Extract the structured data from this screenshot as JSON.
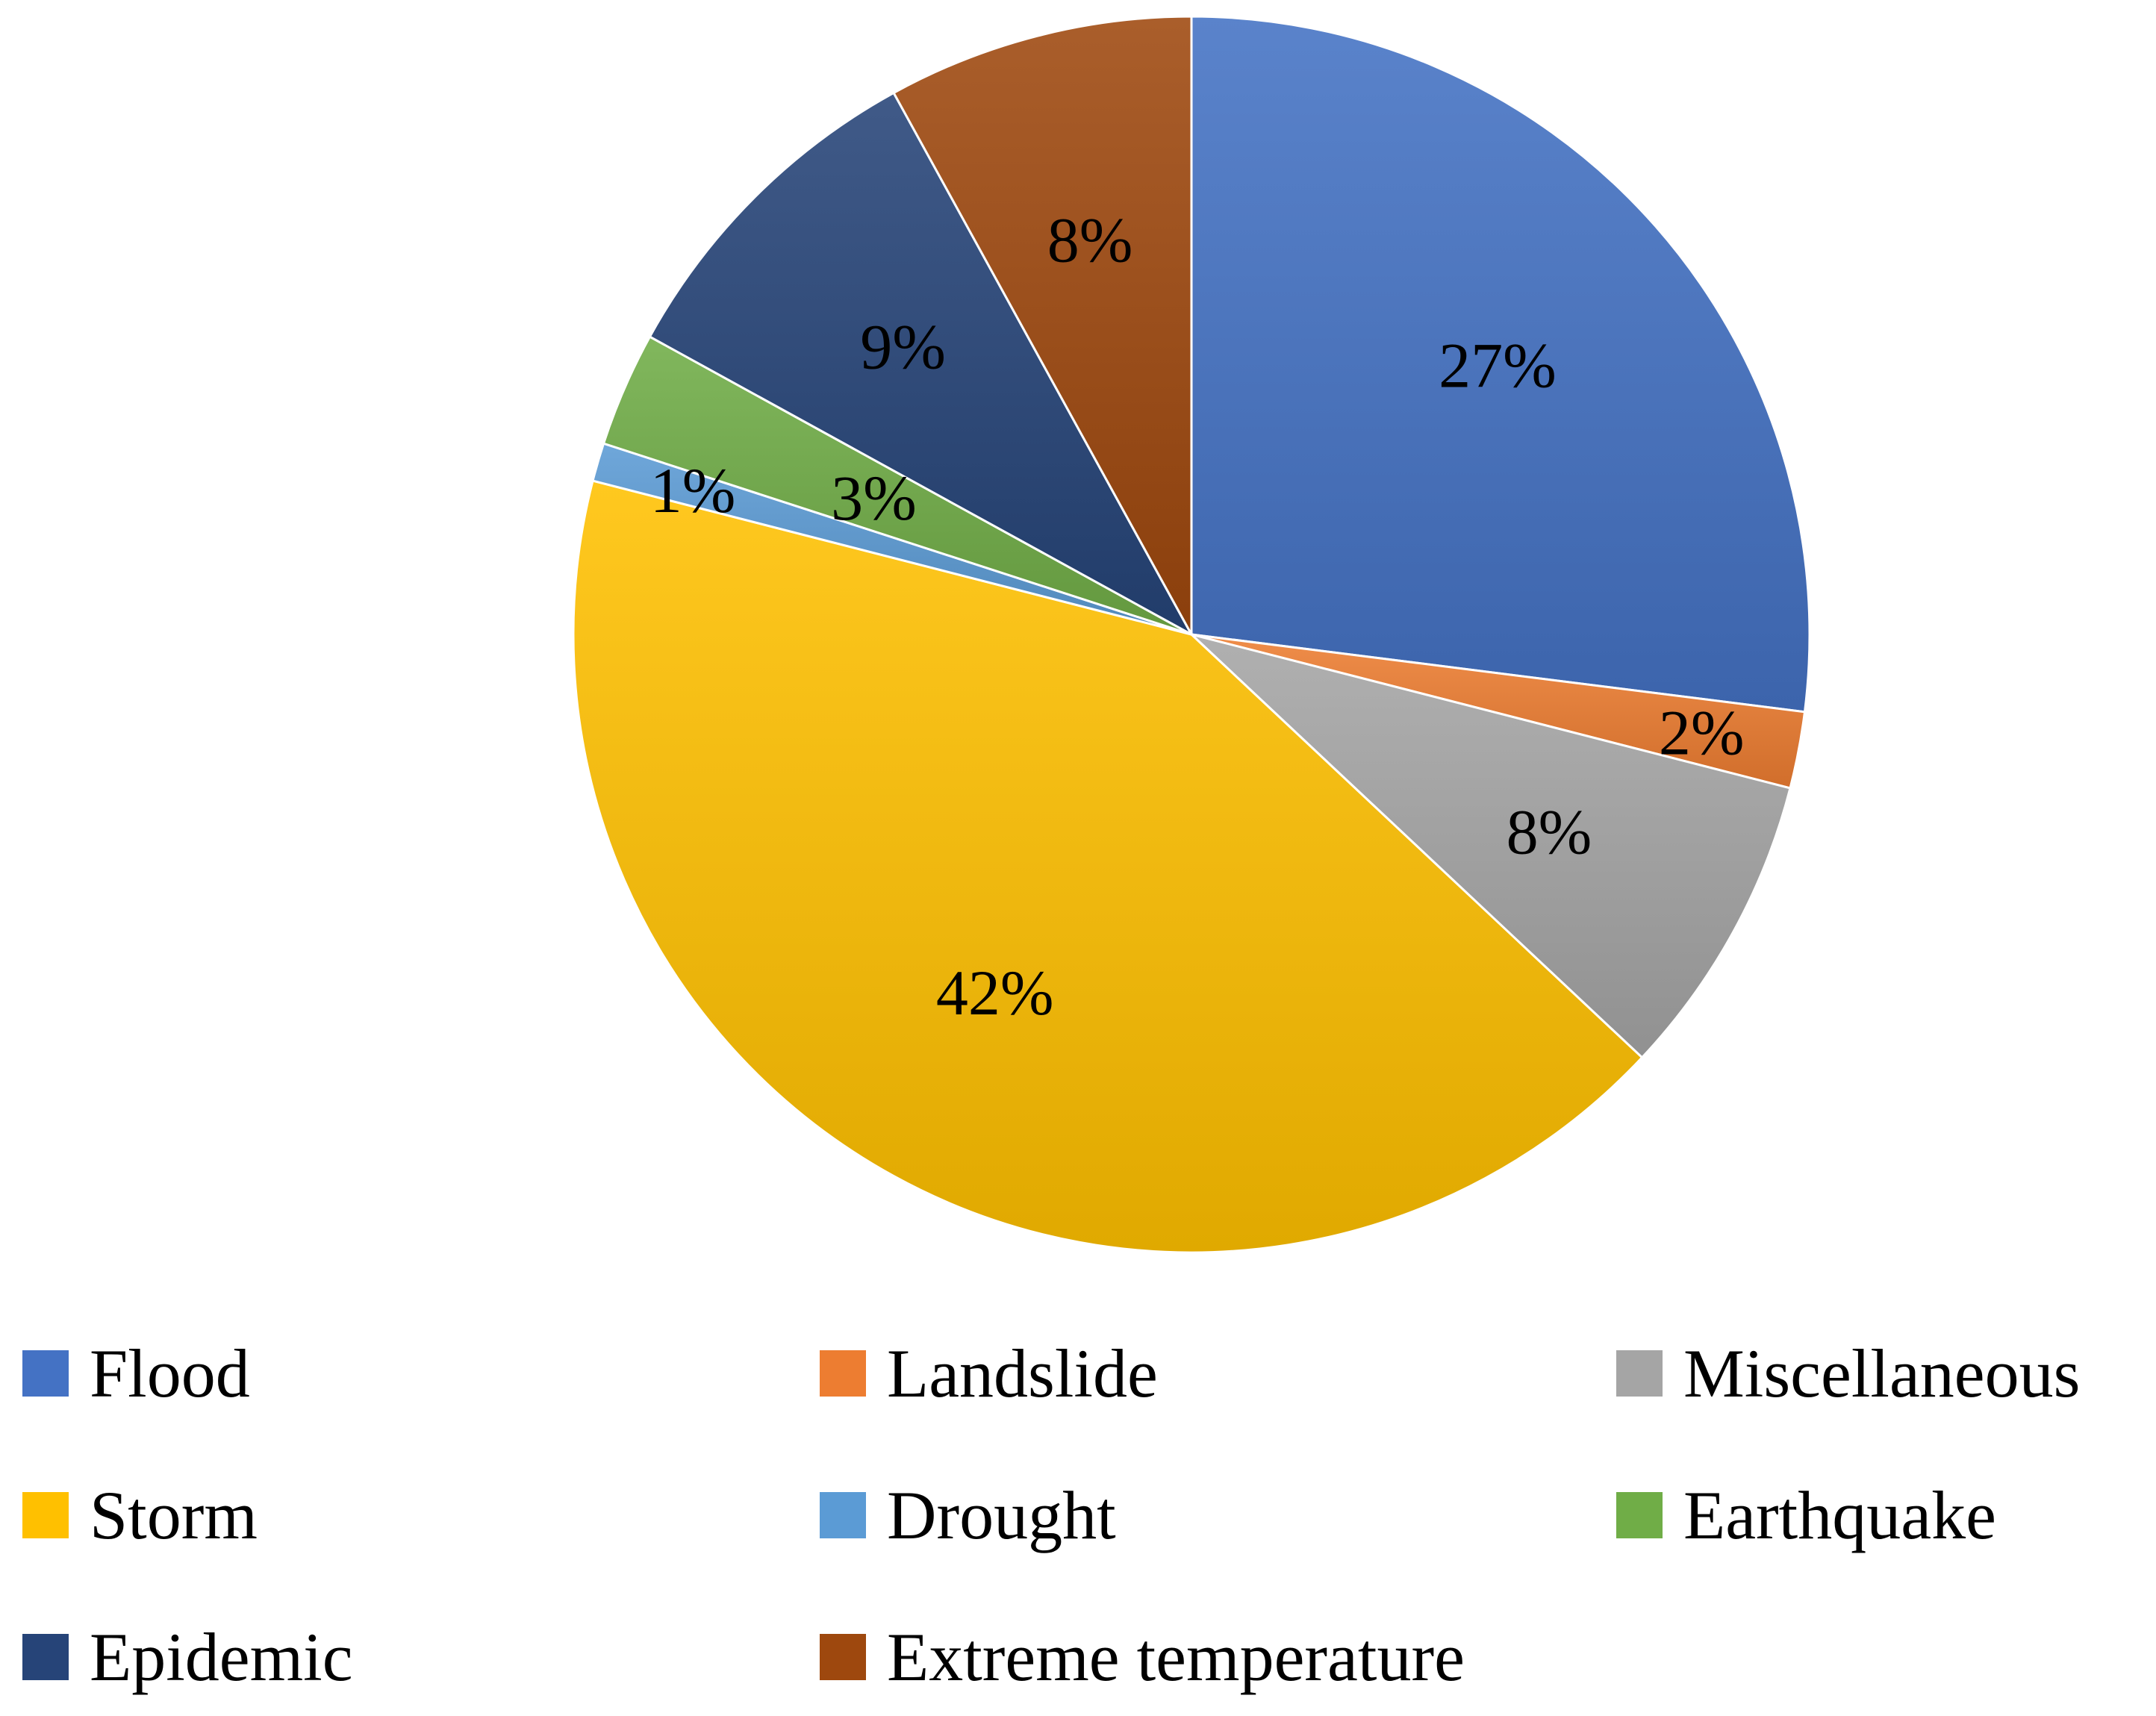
{
  "chart_data": {
    "type": "pie",
    "title": "",
    "start_angle_deg": 0,
    "direction": "clockwise",
    "slices": [
      {
        "name": "Flood",
        "value": 27,
        "label": "27%",
        "color": "#4472C4"
      },
      {
        "name": "Landslide",
        "value": 2,
        "label": "2%",
        "color": "#ED7D31"
      },
      {
        "name": "Miscellaneous",
        "value": 8,
        "label": "8%",
        "color": "#A5A5A5"
      },
      {
        "name": "Storm",
        "value": 42,
        "label": "42%",
        "color": "#FFC000"
      },
      {
        "name": "Drought",
        "value": 1,
        "label": "1%",
        "color": "#5B9BD5"
      },
      {
        "name": "Earthquake",
        "value": 3,
        "label": "3%",
        "color": "#70AD47"
      },
      {
        "name": "Epidemic",
        "value": 9,
        "label": "9%",
        "color": "#264478"
      },
      {
        "name": "Extreme temperature",
        "value": 8,
        "label": "8%",
        "color": "#9E480E"
      }
    ],
    "legend": {
      "position": "bottom",
      "entries": [
        "Flood",
        "Landslide",
        "Miscellaneous",
        "Storm",
        "Drought",
        "Earthquake",
        "Epidemic",
        "Extreme temperature"
      ]
    }
  }
}
